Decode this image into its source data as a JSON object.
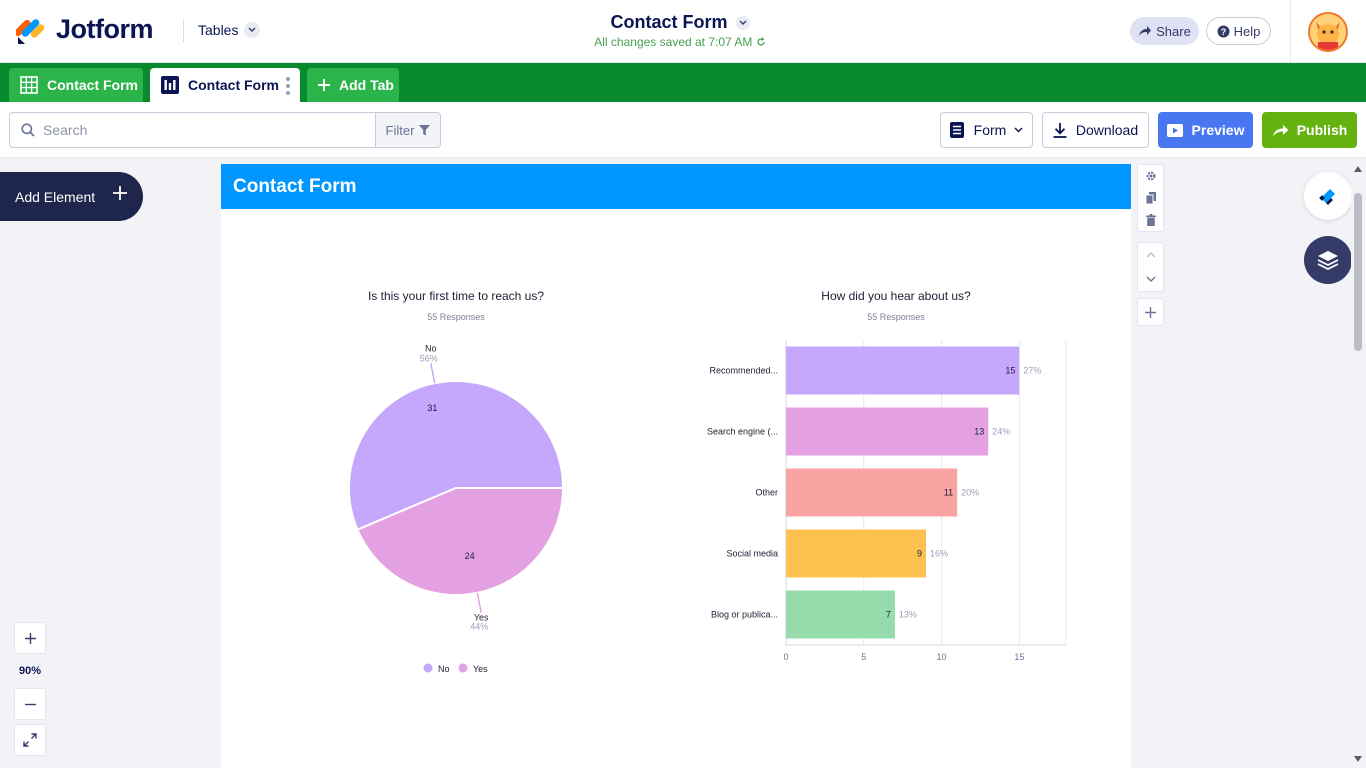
{
  "header": {
    "brand": "Jotform",
    "section": "Tables",
    "title": "Contact Form",
    "save_status": "All changes saved at 7:07 AM",
    "share_label": "Share",
    "help_label": "Help"
  },
  "tabs": [
    {
      "label": "Contact Form",
      "icon": "grid-icon"
    },
    {
      "label": "Contact Form",
      "icon": "report-icon"
    },
    {
      "label": "Add Tab",
      "icon": "plus-icon"
    }
  ],
  "toolbar": {
    "search_placeholder": "Search",
    "filter_label": "Filter",
    "form_label": "Form",
    "download_label": "Download",
    "preview_label": "Preview",
    "publish_label": "Publish"
  },
  "canvas": {
    "add_element_label": "Add Element",
    "report_title": "Contact Form",
    "zoom": "90%"
  },
  "colors": {
    "brand_green": "#0a8a2f",
    "tab_green": "#2bb44a",
    "report_blue": "#0096ff",
    "preview_blue": "#4877f1",
    "publish_green": "#64b20f",
    "navy": "#0a1551"
  },
  "chart_data": [
    {
      "type": "pie",
      "title": "Is this your first time to reach us?",
      "subtitle": "55 Responses",
      "categories": [
        "No",
        "Yes"
      ],
      "values": [
        31,
        24
      ],
      "percent_labels": [
        "56%",
        "44%"
      ],
      "colors": [
        "#c5a8fb",
        "#e3a1e3"
      ],
      "legend": [
        "No",
        "Yes"
      ],
      "legend_position": "bottom"
    },
    {
      "type": "bar",
      "orientation": "horizontal",
      "title": "How did you hear about us?",
      "subtitle": "55 Responses",
      "categories": [
        "Recommended...",
        "Search engine (...",
        "Other",
        "Social media",
        "Blog or publica..."
      ],
      "values": [
        15,
        13,
        11,
        9,
        7
      ],
      "percent_labels": [
        "27%",
        "24%",
        "20%",
        "16%",
        "13%"
      ],
      "colors": [
        "#c5a8fb",
        "#e3a1e3",
        "#f9a3a3",
        "#fec150",
        "#95dbab"
      ],
      "xlim": [
        0,
        18
      ],
      "xticks": [
        "0",
        "5",
        "10",
        "15"
      ],
      "tick_values": [
        0,
        5,
        10,
        15
      ],
      "grid": true
    }
  ]
}
